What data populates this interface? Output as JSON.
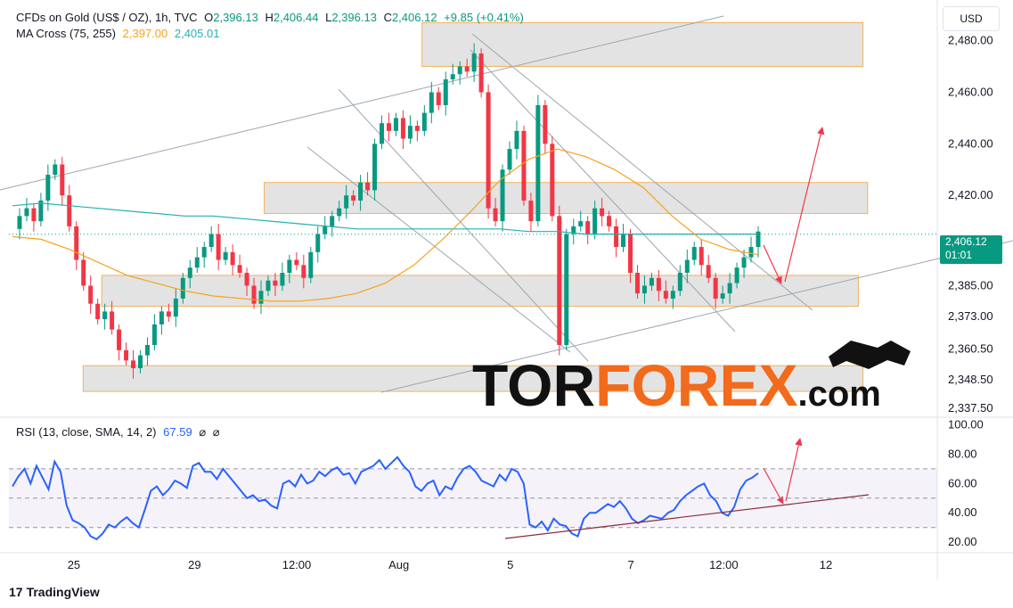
{
  "header": {
    "symbol": "CFDs on Gold (US$ / OZ), 1h, TVC",
    "o_label": "O",
    "o_value": "2,396.13",
    "h_label": "H",
    "h_value": "2,406.44",
    "l_label": "L",
    "l_value": "2,396.13",
    "c_label": "C",
    "c_value": "2,406.12",
    "change": "+9.85 (+0.41%)"
  },
  "ma_legend": {
    "label": "MA Cross (75, 255)",
    "fast": "2,397.00",
    "slow": "2,405.01"
  },
  "rsi_legend": {
    "label": "RSI (13, close, SMA, 14, 2)",
    "value": "67.59",
    "sym1": "⌀",
    "sym2": "⌀"
  },
  "currency": "USD",
  "last_price": {
    "price": "2,406.12",
    "countdown": "01:01"
  },
  "watermark": {
    "part1": "TOR",
    "part2": "FOREX",
    "part3": ".com"
  },
  "footer": {
    "brand": "TradingView",
    "logo": "17"
  },
  "colors": {
    "up": "#089981",
    "down": "#f23645",
    "ma_fast": "#f7a21b",
    "ma_slow": "#26b0b5",
    "rsi": "#2962ff",
    "trend": "#9aa6b2",
    "zone_fill": "#d9d9d9",
    "zone_border": "#f2b25c",
    "arrow": "#f23645",
    "rsi_trend": "#8b2d35"
  },
  "chart_data": [
    {
      "type": "candlestick",
      "ylim": [
        2334,
        2493
      ],
      "y_ticks": [
        "2,480.00",
        "2,460.00",
        "2,440.00",
        "2,420.00",
        "2,385.00",
        "2,373.00",
        "2,360.50",
        "2,348.50",
        "2,337.50"
      ],
      "y_tick_values": [
        2480,
        2460,
        2440,
        2420,
        2385,
        2373,
        2360.5,
        2348.5,
        2337.5
      ],
      "x_ticks": [
        "25",
        "29",
        "12:00",
        "Aug",
        "5",
        "7",
        "12:00",
        "12"
      ],
      "x_tick_fraction": [
        0.07,
        0.2,
        0.31,
        0.42,
        0.54,
        0.67,
        0.77,
        0.88
      ],
      "price_path": [
        2407,
        2412,
        2415,
        2410,
        2418,
        2428,
        2432,
        2420,
        2408,
        2395,
        2385,
        2378,
        2372,
        2375,
        2368,
        2360,
        2356,
        2353,
        2358,
        2362,
        2370,
        2375,
        2373,
        2380,
        2388,
        2392,
        2396,
        2400,
        2405,
        2395,
        2398,
        2393,
        2390,
        2385,
        2378,
        2383,
        2387,
        2385,
        2390,
        2395,
        2393,
        2388,
        2398,
        2405,
        2408,
        2412,
        2415,
        2420,
        2418,
        2425,
        2422,
        2440,
        2448,
        2445,
        2450,
        2442,
        2447,
        2445,
        2452,
        2460,
        2455,
        2465,
        2467,
        2470,
        2468,
        2475,
        2460,
        2415,
        2410,
        2430,
        2438,
        2445,
        2418,
        2410,
        2455,
        2440,
        2412,
        2362,
        2405,
        2408,
        2410,
        2405,
        2415,
        2412,
        2408,
        2400,
        2405,
        2390,
        2382,
        2385,
        2388,
        2383,
        2380,
        2383,
        2390,
        2395,
        2400,
        2393,
        2388,
        2380,
        2382,
        2386,
        2392,
        2396,
        2400,
        2406
      ],
      "zones": [
        {
          "from": 2470,
          "to": 2487,
          "x_start": 0.445,
          "x_end": 0.92
        },
        {
          "from": 2413,
          "to": 2425,
          "x_start": 0.275,
          "x_end": 0.925
        },
        {
          "from": 2377,
          "to": 2389,
          "x_start": 0.1,
          "x_end": 0.915
        },
        {
          "from": 2344,
          "to": 2354,
          "x_start": 0.08,
          "x_end": 0.92
        }
      ],
      "ma_fast_level": [
        2404,
        2403,
        2399,
        2394,
        2389,
        2386,
        2383,
        2381,
        2380,
        2379,
        2379,
        2380,
        2382,
        2386,
        2393,
        2403,
        2414,
        2426,
        2434,
        2438,
        2435,
        2430,
        2423,
        2412,
        2403,
        2399,
        2397
      ],
      "ma_slow_level": [
        2416,
        2417,
        2416,
        2415,
        2414,
        2413,
        2412,
        2412,
        2411,
        2410,
        2409,
        2408,
        2407,
        2407,
        2407,
        2407,
        2407,
        2407,
        2406,
        2406,
        2405,
        2405,
        2405,
        2405,
        2405,
        2405,
        2405
      ]
    },
    {
      "type": "line",
      "name": "RSI",
      "ylim": [
        14,
        104
      ],
      "y_ticks": [
        "100.00",
        "80.00",
        "60.00",
        "40.00",
        "20.00"
      ],
      "y_tick_values": [
        100,
        80,
        60,
        40,
        20
      ],
      "band": [
        30,
        70
      ],
      "mid": 50,
      "values": [
        58,
        65,
        70,
        60,
        72,
        64,
        56,
        75,
        68,
        45,
        35,
        33,
        30,
        24,
        22,
        26,
        32,
        30,
        34,
        37,
        33,
        30,
        42,
        55,
        58,
        52,
        56,
        62,
        60,
        57,
        72,
        74,
        68,
        68,
        63,
        70,
        65,
        60,
        55,
        50,
        52,
        48,
        49,
        45,
        43,
        60,
        62,
        58,
        66,
        60,
        62,
        68,
        65,
        69,
        71,
        66,
        67,
        60,
        68,
        70,
        72,
        76,
        70,
        74,
        78,
        72,
        68,
        58,
        55,
        60,
        62,
        52,
        58,
        56,
        64,
        70,
        72,
        68,
        62,
        60,
        58,
        66,
        62,
        70,
        68,
        60,
        32,
        30,
        34,
        28,
        36,
        32,
        31,
        26,
        24,
        36,
        40,
        40,
        43,
        46,
        44,
        48,
        43,
        36,
        33,
        35,
        38,
        37,
        36,
        40,
        42,
        48,
        52,
        55,
        58,
        60,
        52,
        48,
        40,
        38,
        44,
        56,
        62,
        64,
        67
      ]
    }
  ]
}
